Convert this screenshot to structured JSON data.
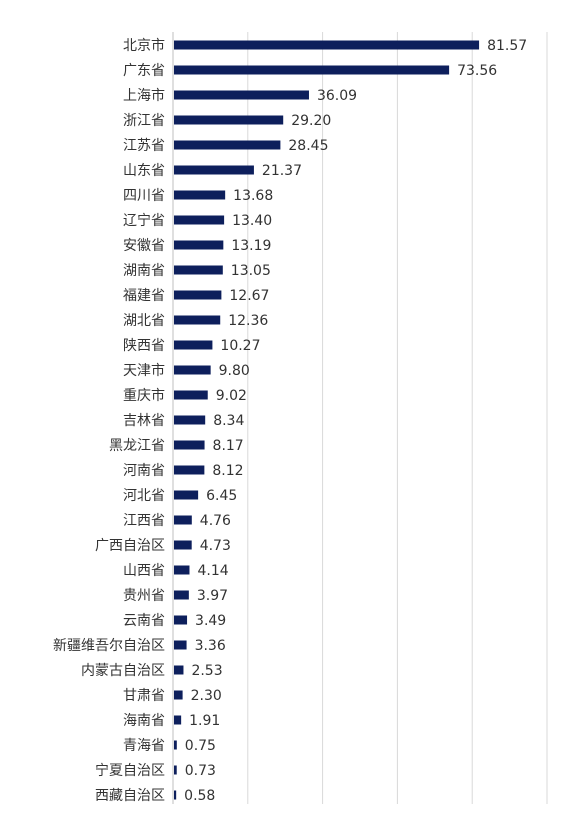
{
  "chart_data": {
    "type": "bar",
    "orientation": "horizontal",
    "categories": [
      "北京市",
      "广东省",
      "上海市",
      "浙江省",
      "江苏省",
      "山东省",
      "四川省",
      "辽宁省",
      "安徽省",
      "湖南省",
      "福建省",
      "湖北省",
      "陕西省",
      "天津市",
      "重庆市",
      "吉林省",
      "黑龙江省",
      "河南省",
      "河北省",
      "江西省",
      "广西自治区",
      "山西省",
      "贵州省",
      "云南省",
      "新疆维吾尔自治区",
      "内蒙古自治区",
      "甘肃省",
      "海南省",
      "青海省",
      "宁夏自治区",
      "西藏自治区"
    ],
    "values": [
      81.57,
      73.56,
      36.09,
      29.2,
      28.45,
      21.37,
      13.68,
      13.4,
      13.19,
      13.05,
      12.67,
      12.36,
      10.27,
      9.8,
      9.02,
      8.34,
      8.17,
      8.12,
      6.45,
      4.76,
      4.73,
      4.14,
      3.97,
      3.49,
      3.36,
      2.53,
      2.3,
      1.91,
      0.75,
      0.73,
      0.58
    ],
    "value_labels": [
      "81.57",
      "73.56",
      "36.09",
      "29.20",
      "28.45",
      "21.37",
      "13.68",
      "13.40",
      "13.19",
      "13.05",
      "12.67",
      "12.36",
      "10.27",
      "9.80",
      "9.02",
      "8.34",
      "8.17",
      "8.12",
      "6.45",
      "4.76",
      "4.73",
      "4.14",
      "3.97",
      "3.49",
      "3.36",
      "2.53",
      "2.30",
      "1.91",
      "0.75",
      "0.73",
      "0.58"
    ],
    "xlim": [
      0,
      100
    ],
    "grid": true,
    "gridline_values": [
      0,
      20,
      40,
      60,
      80,
      100
    ],
    "title": "",
    "xlabel": "",
    "ylabel": "",
    "bar_color": "#0d1f5c",
    "grid_color": "#d9d9d9",
    "text_color": "#333333"
  }
}
